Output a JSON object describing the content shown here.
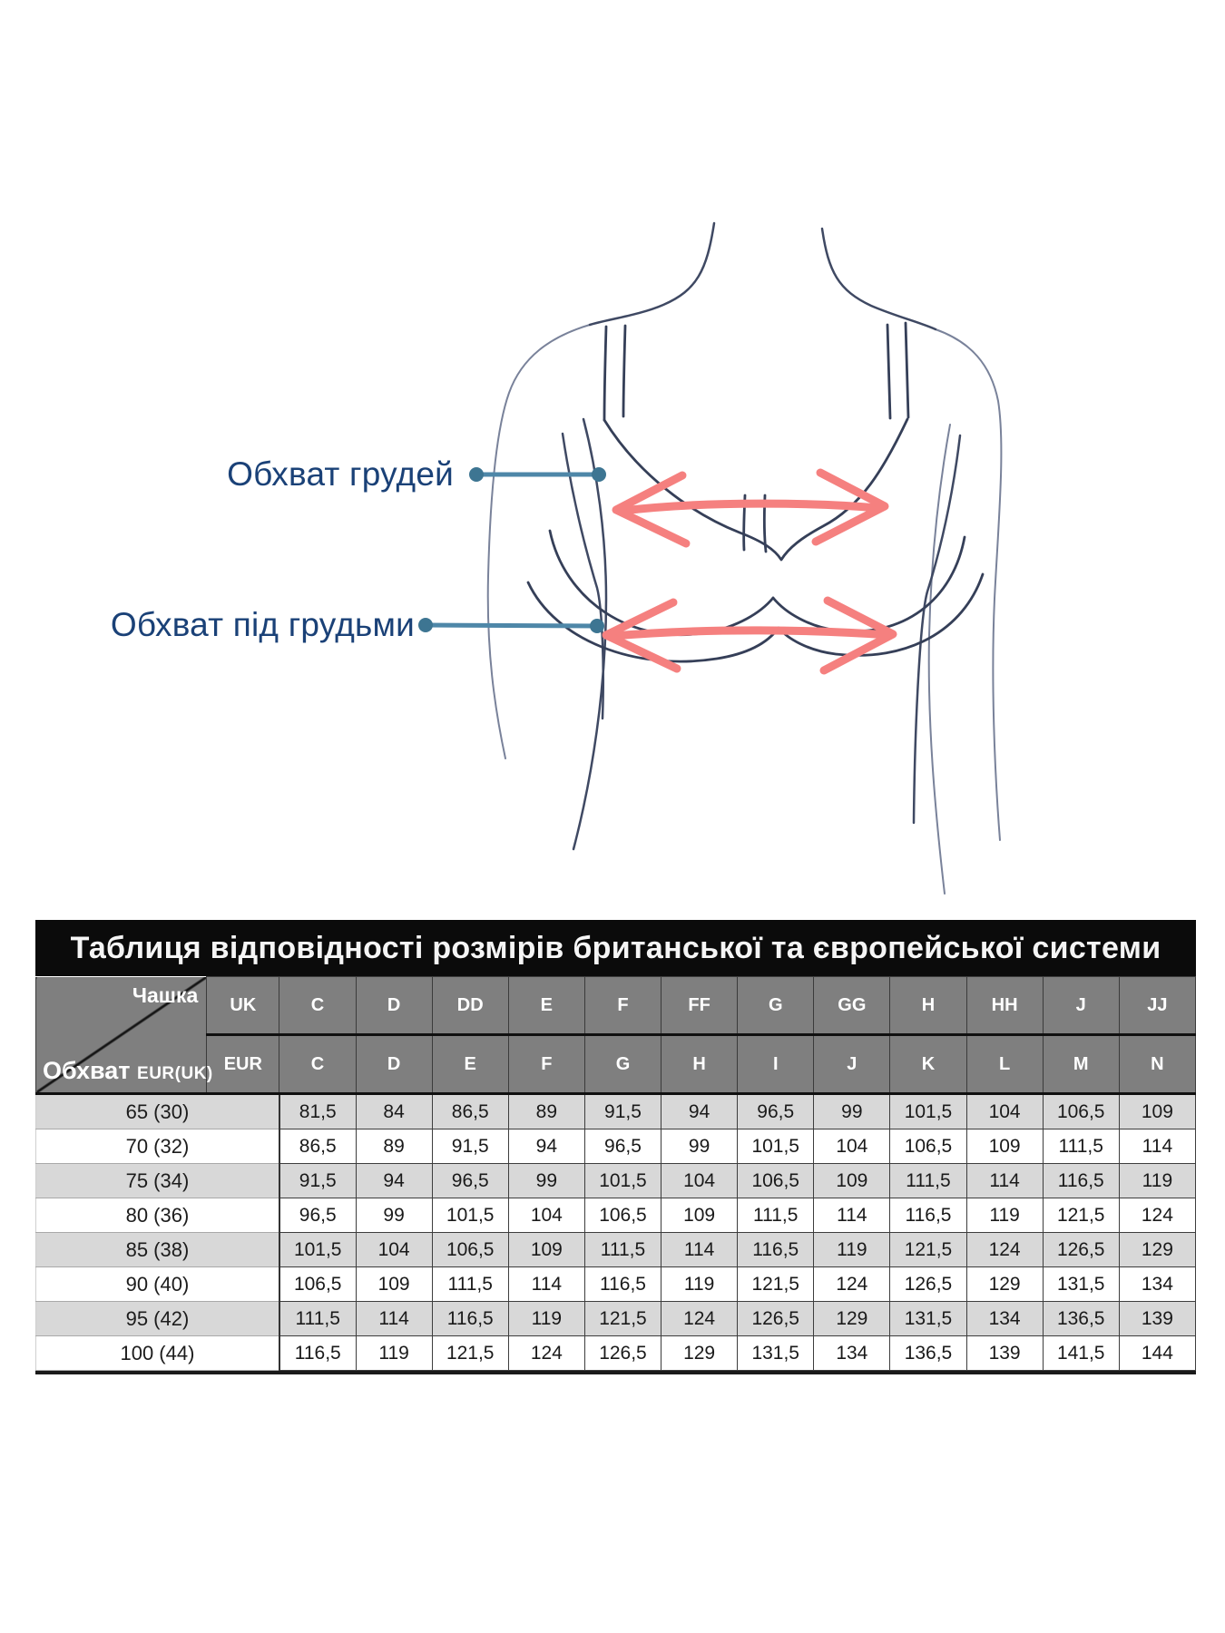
{
  "diagram": {
    "labels": {
      "bust": "Обхват грудей",
      "underbust": "Обхват під грудьми"
    },
    "colors": {
      "label_text": "#1a4177",
      "connector_line": "#4e87a8",
      "connector_dot": "#3d7592",
      "measure_arrow": "#f5807f",
      "figure_line": "#3f4963"
    }
  },
  "chart_data": {
    "type": "table",
    "title": "Таблиця відповідності розмірів британської та європейської системи",
    "corner": {
      "top_label": "Чашка",
      "bottom_label": "Обхват",
      "bottom_label_suffix": "EUR(UK)"
    },
    "header_uk": {
      "label": "UK",
      "cups": [
        "C",
        "D",
        "DD",
        "E",
        "F",
        "FF",
        "G",
        "GG",
        "H",
        "HH",
        "J",
        "JJ"
      ]
    },
    "header_eur": {
      "label": "EUR",
      "cups": [
        "C",
        "D",
        "E",
        "F",
        "G",
        "H",
        "I",
        "J",
        "K",
        "L",
        "M",
        "N"
      ]
    },
    "rows": [
      {
        "band": "65 (30)",
        "values": [
          "81,5",
          "84",
          "86,5",
          "89",
          "91,5",
          "94",
          "96,5",
          "99",
          "101,5",
          "104",
          "106,5",
          "109"
        ]
      },
      {
        "band": "70 (32)",
        "values": [
          "86,5",
          "89",
          "91,5",
          "94",
          "96,5",
          "99",
          "101,5",
          "104",
          "106,5",
          "109",
          "111,5",
          "114"
        ]
      },
      {
        "band": "75 (34)",
        "values": [
          "91,5",
          "94",
          "96,5",
          "99",
          "101,5",
          "104",
          "106,5",
          "109",
          "111,5",
          "114",
          "116,5",
          "119"
        ]
      },
      {
        "band": "80 (36)",
        "values": [
          "96,5",
          "99",
          "101,5",
          "104",
          "106,5",
          "109",
          "111,5",
          "114",
          "116,5",
          "119",
          "121,5",
          "124"
        ]
      },
      {
        "band": "85 (38)",
        "values": [
          "101,5",
          "104",
          "106,5",
          "109",
          "111,5",
          "114",
          "116,5",
          "119",
          "121,5",
          "124",
          "126,5",
          "129"
        ]
      },
      {
        "band": "90 (40)",
        "values": [
          "106,5",
          "109",
          "111,5",
          "114",
          "116,5",
          "119",
          "121,5",
          "124",
          "126,5",
          "129",
          "131,5",
          "134"
        ]
      },
      {
        "band": "95 (42)",
        "values": [
          "111,5",
          "114",
          "116,5",
          "119",
          "121,5",
          "124",
          "126,5",
          "129",
          "131,5",
          "134",
          "136,5",
          "139"
        ]
      },
      {
        "band": "100 (44)",
        "values": [
          "116,5",
          "119",
          "121,5",
          "124",
          "126,5",
          "129",
          "131,5",
          "134",
          "136,5",
          "139",
          "141,5",
          "144"
        ]
      }
    ],
    "layout": {
      "stripe_color": "#d8d8d8",
      "header_bg": "#7f7f7f",
      "title_bg": "#0b0b0b",
      "grid": true
    }
  }
}
